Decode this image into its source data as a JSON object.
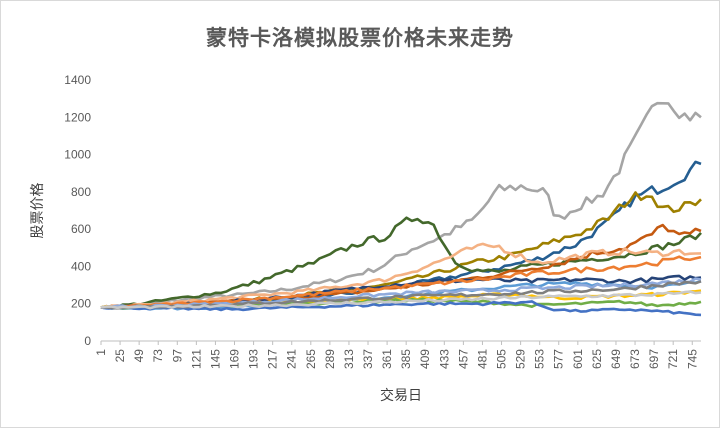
{
  "chart_data": {
    "type": "line",
    "title": "蒙特卡洛模拟股票价格未来走势",
    "xlabel": "交易日",
    "ylabel": "股票价格",
    "ylim": [
      0,
      1400
    ],
    "yticks": [
      0,
      200,
      400,
      600,
      800,
      1000,
      1200,
      1400
    ],
    "xlim": [
      1,
      756
    ],
    "xticks": [
      1,
      25,
      49,
      73,
      97,
      121,
      145,
      169,
      193,
      217,
      241,
      265,
      289,
      313,
      337,
      361,
      385,
      409,
      433,
      457,
      481,
      505,
      529,
      553,
      577,
      601,
      625,
      649,
      673,
      697,
      721,
      745
    ],
    "grid": false,
    "legend": "none",
    "series": [
      {
        "color": "#a5a5a5",
        "points": [
          [
            1,
            180
          ],
          [
            60,
            200
          ],
          [
            120,
            230
          ],
          [
            180,
            250
          ],
          [
            240,
            280
          ],
          [
            300,
            330
          ],
          [
            350,
            390
          ],
          [
            390,
            490
          ],
          [
            430,
            560
          ],
          [
            470,
            650
          ],
          [
            500,
            810
          ],
          [
            530,
            830
          ],
          [
            560,
            800
          ],
          [
            575,
            650
          ],
          [
            600,
            720
          ],
          [
            630,
            780
          ],
          [
            650,
            900
          ],
          [
            670,
            1050
          ],
          [
            690,
            1200
          ],
          [
            705,
            1330
          ],
          [
            720,
            1280
          ],
          [
            735,
            1210
          ],
          [
            756,
            1200
          ]
        ]
      },
      {
        "color": "#255e91",
        "points": [
          [
            1,
            180
          ],
          [
            80,
            190
          ],
          [
            160,
            200
          ],
          [
            240,
            230
          ],
          [
            320,
            260
          ],
          [
            400,
            310
          ],
          [
            450,
            350
          ],
          [
            500,
            390
          ],
          [
            550,
            440
          ],
          [
            600,
            520
          ],
          [
            640,
            640
          ],
          [
            670,
            760
          ],
          [
            690,
            800
          ],
          [
            710,
            830
          ],
          [
            730,
            880
          ],
          [
            756,
            950
          ]
        ]
      },
      {
        "color": "#9e8000",
        "points": [
          [
            1,
            180
          ],
          [
            80,
            190
          ],
          [
            160,
            210
          ],
          [
            240,
            240
          ],
          [
            300,
            270
          ],
          [
            360,
            300
          ],
          [
            420,
            360
          ],
          [
            470,
            420
          ],
          [
            520,
            460
          ],
          [
            570,
            530
          ],
          [
            610,
            590
          ],
          [
            640,
            660
          ],
          [
            665,
            760
          ],
          [
            690,
            800
          ],
          [
            710,
            700
          ],
          [
            735,
            720
          ],
          [
            756,
            760
          ]
        ]
      },
      {
        "color": "#43682b",
        "points": [
          [
            1,
            180
          ],
          [
            50,
            200
          ],
          [
            100,
            230
          ],
          [
            150,
            260
          ],
          [
            200,
            320
          ],
          [
            240,
            380
          ],
          [
            270,
            420
          ],
          [
            300,
            480
          ],
          [
            330,
            530
          ],
          [
            360,
            560
          ],
          [
            385,
            640
          ],
          [
            400,
            670
          ],
          [
            420,
            620
          ],
          [
            445,
            430
          ],
          [
            470,
            380
          ],
          [
            500,
            370
          ],
          [
            540,
            400
          ],
          [
            580,
            420
          ],
          [
            620,
            440
          ],
          [
            660,
            460
          ],
          [
            700,
            500
          ],
          [
            730,
            530
          ],
          [
            756,
            580
          ]
        ]
      },
      {
        "color": "#c55a11",
        "points": [
          [
            1,
            180
          ],
          [
            80,
            190
          ],
          [
            160,
            210
          ],
          [
            240,
            230
          ],
          [
            320,
            260
          ],
          [
            400,
            300
          ],
          [
            460,
            330
          ],
          [
            520,
            370
          ],
          [
            580,
            420
          ],
          [
            620,
            470
          ],
          [
            660,
            500
          ],
          [
            690,
            560
          ],
          [
            710,
            620
          ],
          [
            730,
            560
          ],
          [
            756,
            590
          ]
        ]
      },
      {
        "color": "#f4b183",
        "points": [
          [
            1,
            180
          ],
          [
            80,
            200
          ],
          [
            160,
            230
          ],
          [
            240,
            260
          ],
          [
            300,
            290
          ],
          [
            360,
            330
          ],
          [
            410,
            400
          ],
          [
            440,
            450
          ],
          [
            470,
            500
          ],
          [
            500,
            510
          ],
          [
            520,
            470
          ],
          [
            550,
            420
          ],
          [
            580,
            440
          ],
          [
            620,
            470
          ],
          [
            660,
            480
          ],
          [
            700,
            470
          ],
          [
            730,
            480
          ],
          [
            756,
            470
          ]
        ]
      },
      {
        "color": "#264478",
        "points": [
          [
            1,
            180
          ],
          [
            80,
            190
          ],
          [
            160,
            210
          ],
          [
            240,
            240
          ],
          [
            300,
            270
          ],
          [
            360,
            300
          ],
          [
            420,
            320
          ],
          [
            480,
            330
          ],
          [
            540,
            320
          ],
          [
            600,
            330
          ],
          [
            660,
            320
          ],
          [
            700,
            330
          ],
          [
            730,
            340
          ],
          [
            756,
            340
          ]
        ]
      },
      {
        "color": "#5b9bd5",
        "points": [
          [
            1,
            180
          ],
          [
            80,
            175
          ],
          [
            160,
            180
          ],
          [
            240,
            200
          ],
          [
            320,
            220
          ],
          [
            400,
            250
          ],
          [
            480,
            280
          ],
          [
            540,
            300
          ],
          [
            600,
            310
          ],
          [
            660,
            300
          ],
          [
            700,
            290
          ],
          [
            730,
            300
          ],
          [
            756,
            320
          ]
        ]
      },
      {
        "color": "#ffc000",
        "points": [
          [
            1,
            180
          ],
          [
            80,
            190
          ],
          [
            160,
            200
          ],
          [
            240,
            210
          ],
          [
            320,
            220
          ],
          [
            400,
            230
          ],
          [
            460,
            240
          ],
          [
            520,
            250
          ],
          [
            580,
            230
          ],
          [
            640,
            240
          ],
          [
            700,
            250
          ],
          [
            730,
            260
          ],
          [
            756,
            270
          ]
        ]
      },
      {
        "color": "#70ad47",
        "points": [
          [
            1,
            180
          ],
          [
            80,
            185
          ],
          [
            160,
            190
          ],
          [
            240,
            200
          ],
          [
            320,
            210
          ],
          [
            400,
            220
          ],
          [
            480,
            210
          ],
          [
            540,
            190
          ],
          [
            600,
            200
          ],
          [
            660,
            210
          ],
          [
            700,
            190
          ],
          [
            730,
            200
          ],
          [
            756,
            210
          ]
        ]
      },
      {
        "color": "#4472c4",
        "points": [
          [
            1,
            180
          ],
          [
            80,
            175
          ],
          [
            160,
            170
          ],
          [
            240,
            180
          ],
          [
            320,
            190
          ],
          [
            400,
            200
          ],
          [
            480,
            200
          ],
          [
            540,
            210
          ],
          [
            570,
            170
          ],
          [
            600,
            160
          ],
          [
            660,
            170
          ],
          [
            700,
            160
          ],
          [
            730,
            150
          ],
          [
            756,
            140
          ]
        ]
      },
      {
        "color": "#ed7d31",
        "points": [
          [
            1,
            180
          ],
          [
            80,
            195
          ],
          [
            160,
            215
          ],
          [
            240,
            240
          ],
          [
            320,
            270
          ],
          [
            400,
            300
          ],
          [
            480,
            330
          ],
          [
            540,
            360
          ],
          [
            600,
            380
          ],
          [
            660,
            400
          ],
          [
            700,
            420
          ],
          [
            730,
            440
          ],
          [
            756,
            450
          ]
        ]
      },
      {
        "color": "#8faadc",
        "points": [
          [
            1,
            180
          ],
          [
            80,
            190
          ],
          [
            160,
            200
          ],
          [
            240,
            220
          ],
          [
            320,
            240
          ],
          [
            400,
            260
          ],
          [
            480,
            270
          ],
          [
            540,
            280
          ],
          [
            600,
            290
          ],
          [
            660,
            300
          ],
          [
            700,
            310
          ],
          [
            730,
            320
          ],
          [
            756,
            330
          ]
        ]
      },
      {
        "color": "#7f7f7f",
        "points": [
          [
            1,
            180
          ],
          [
            80,
            185
          ],
          [
            160,
            195
          ],
          [
            240,
            210
          ],
          [
            320,
            225
          ],
          [
            400,
            240
          ],
          [
            480,
            250
          ],
          [
            540,
            260
          ],
          [
            600,
            270
          ],
          [
            660,
            280
          ],
          [
            700,
            300
          ],
          [
            730,
            310
          ],
          [
            756,
            320
          ]
        ]
      },
      {
        "color": "#c9c9c9",
        "points": [
          [
            1,
            180
          ],
          [
            80,
            182
          ],
          [
            160,
            186
          ],
          [
            240,
            195
          ],
          [
            320,
            205
          ],
          [
            400,
            215
          ],
          [
            480,
            225
          ],
          [
            540,
            235
          ],
          [
            600,
            240
          ],
          [
            660,
            245
          ],
          [
            700,
            250
          ],
          [
            730,
            255
          ],
          [
            756,
            260
          ]
        ]
      }
    ]
  }
}
